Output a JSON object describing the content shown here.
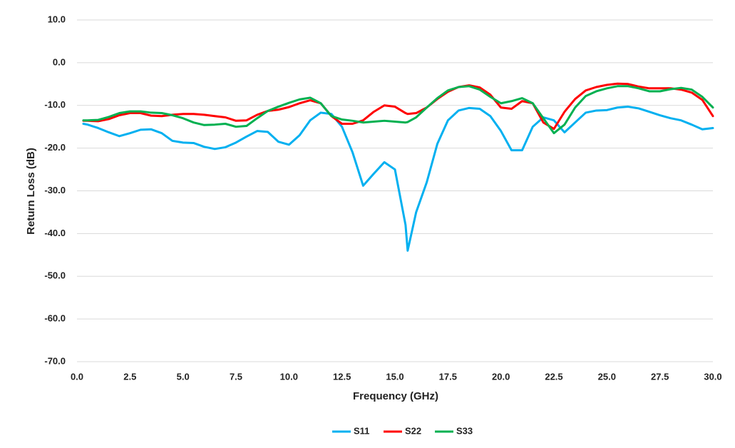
{
  "chart_data": {
    "type": "line",
    "xlabel": "Frequency (GHz)",
    "ylabel": "Return Loss (dB)",
    "xlim": [
      0,
      30
    ],
    "ylim": [
      -70,
      10
    ],
    "xticks": [
      {
        "value": 0,
        "label": "0.0"
      },
      {
        "value": 2.5,
        "label": "2.5"
      },
      {
        "value": 5,
        "label": "5.0"
      },
      {
        "value": 7.5,
        "label": "7.5"
      },
      {
        "value": 10,
        "label": "10.0"
      },
      {
        "value": 12.5,
        "label": "12.5"
      },
      {
        "value": 15,
        "label": "15.0"
      },
      {
        "value": 17.5,
        "label": "17.5"
      },
      {
        "value": 20,
        "label": "20.0"
      },
      {
        "value": 22.5,
        "label": "22.5"
      },
      {
        "value": 25,
        "label": "25.0"
      },
      {
        "value": 27.5,
        "label": "27.5"
      },
      {
        "value": 30,
        "label": "30.0"
      }
    ],
    "yticks": [
      {
        "value": 10,
        "label": "10.0"
      },
      {
        "value": 0,
        "label": "0.0"
      },
      {
        "value": -10,
        "label": "-10.0"
      },
      {
        "value": -20,
        "label": "-20.0"
      },
      {
        "value": -30,
        "label": "-30.0"
      },
      {
        "value": -40,
        "label": "-40.0"
      },
      {
        "value": -50,
        "label": "-50.0"
      },
      {
        "value": -60,
        "label": "-60.0"
      },
      {
        "value": -70,
        "label": "-70.0"
      }
    ],
    "grid": true,
    "legend": "bottom",
    "x": [
      0.3,
      0.5,
      1,
      1.5,
      2,
      2.5,
      3,
      3.5,
      4,
      4.5,
      5,
      5.5,
      6,
      6.5,
      7,
      7.5,
      8,
      8.5,
      9,
      9.5,
      10,
      10.5,
      11,
      11.5,
      12,
      12.5,
      13,
      13.5,
      14,
      14.5,
      15,
      15.5,
      15.6,
      16,
      16.5,
      17,
      17.5,
      18,
      18.5,
      19,
      19.5,
      20,
      20.5,
      21,
      21.5,
      22,
      22.5,
      23,
      23.5,
      24,
      24.5,
      25,
      25.5,
      26,
      26.5,
      27,
      27.5,
      28,
      28.5,
      29,
      29.5,
      30
    ],
    "series": [
      {
        "name": "S11",
        "color": "#00b0f0",
        "values": [
          -14.3,
          -14.5,
          -15.3,
          -16.3,
          -17.2,
          -16.5,
          -15.7,
          -15.6,
          -16.5,
          -18.3,
          -18.7,
          -18.8,
          -19.7,
          -20.2,
          -19.8,
          -18.7,
          -17.3,
          -16,
          -16.2,
          -18.5,
          -19.2,
          -17,
          -13.5,
          -11.7,
          -12,
          -15,
          -21,
          -28.8,
          -26,
          -23.3,
          -25,
          -38,
          -44,
          -35,
          -28,
          -19,
          -13.5,
          -11.2,
          -10.6,
          -10.8,
          -12.5,
          -16,
          -20.5,
          -20.5,
          -15,
          -12.8,
          -13.5,
          -16.3,
          -14,
          -11.7,
          -11.2,
          -11.1,
          -10.5,
          -10.3,
          -10.7,
          -11.5,
          -12.3,
          -13,
          -13.5,
          -14.5,
          -15.6,
          -15.3
        ]
      },
      {
        "name": "S22",
        "color": "#ff0000",
        "values": [
          -13.6,
          -13.6,
          -13.7,
          -13.2,
          -12.3,
          -11.8,
          -11.8,
          -12.4,
          -12.5,
          -12.2,
          -12,
          -12,
          -12.2,
          -12.5,
          -12.8,
          -13.6,
          -13.5,
          -12.2,
          -11.3,
          -11,
          -10.4,
          -9.5,
          -8.8,
          -9.5,
          -12.5,
          -14.3,
          -14.3,
          -13.5,
          -11.5,
          -10,
          -10.3,
          -11.8,
          -12,
          -11.8,
          -10.5,
          -8.5,
          -6.8,
          -5.7,
          -5.3,
          -5.8,
          -7.5,
          -10.5,
          -10.8,
          -9,
          -9.5,
          -14,
          -15.5,
          -11.5,
          -8.5,
          -6.5,
          -5.7,
          -5.2,
          -4.9,
          -5,
          -5.6,
          -6,
          -6,
          -6,
          -6.3,
          -7,
          -8.7,
          -12.5
        ]
      },
      {
        "name": "S33",
        "color": "#00b050",
        "values": [
          -13.5,
          -13.5,
          -13.4,
          -12.7,
          -11.8,
          -11.4,
          -11.4,
          -11.7,
          -11.8,
          -12.3,
          -13,
          -14,
          -14.6,
          -14.5,
          -14.3,
          -15,
          -14.8,
          -13,
          -11.3,
          -10.3,
          -9.4,
          -8.6,
          -8.2,
          -9.5,
          -12.5,
          -13.3,
          -13.6,
          -14,
          -13.8,
          -13.6,
          -13.8,
          -14,
          -13.9,
          -12.8,
          -10.5,
          -8.3,
          -6.5,
          -5.7,
          -5.5,
          -6.3,
          -8,
          -9.5,
          -9,
          -8.3,
          -9.5,
          -13,
          -16.5,
          -14.5,
          -10.5,
          -7.8,
          -6.7,
          -6,
          -5.5,
          -5.5,
          -6,
          -6.7,
          -6.7,
          -6.2,
          -5.9,
          -6.3,
          -8,
          -10.5
        ]
      }
    ]
  }
}
